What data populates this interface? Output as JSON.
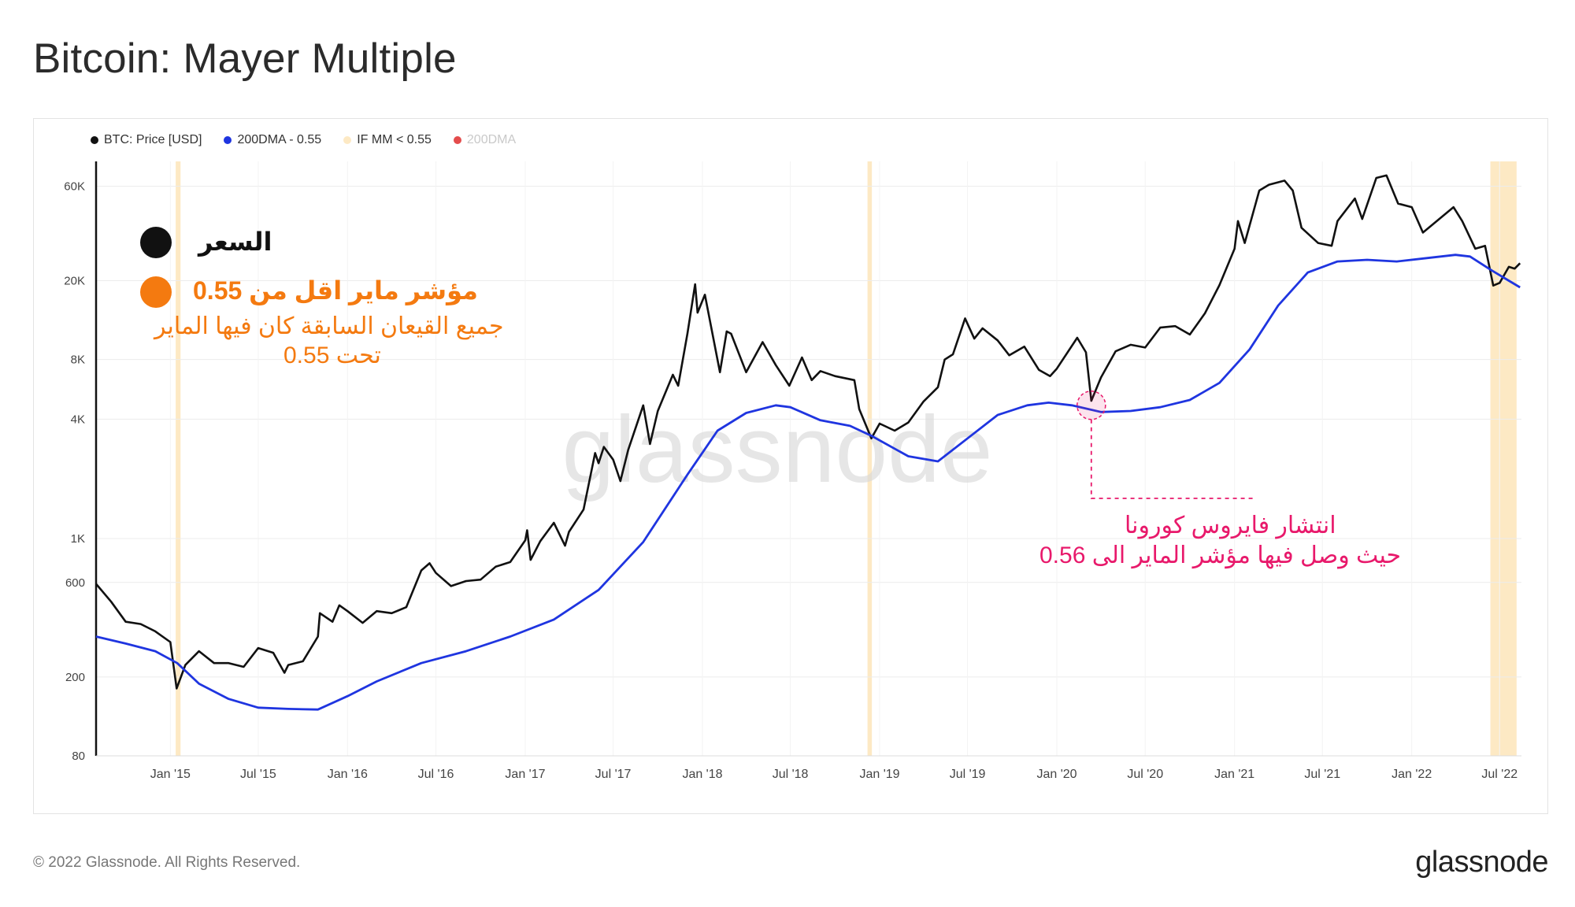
{
  "title": "Bitcoin: Mayer Multiple",
  "legend": [
    {
      "label": "BTC: Price [USD]",
      "color": "#111111",
      "muted": false
    },
    {
      "label": "200DMA - 0.55",
      "color": "#1f35e0",
      "muted": false
    },
    {
      "label": "IF MM < 0.55",
      "color": "#fde9c4",
      "muted": false
    },
    {
      "label": "200DMA",
      "color": "#e44c4c",
      "muted": true
    }
  ],
  "annotations": {
    "price_label": "السعر",
    "mm_label": "مؤشر ماير اقل من 0.55",
    "mm_note_line1": "جميع القيعان السابقة كان فيها الماير",
    "mm_note_line2": "تحت 0.55",
    "covid_line1": "انتشار فايروس كورونا",
    "covid_line2": "حيث وصل فيها مؤشر الماير الى 0.56"
  },
  "colors": {
    "price": "#111111",
    "dma": "#1f35e0",
    "band": "#fde9c4",
    "covid": "#e8196b",
    "orange": "#f47a10"
  },
  "watermark": "glassnode",
  "footer": {
    "copyright": "© 2022 Glassnode. All Rights Reserved.",
    "logo": "glassnode"
  },
  "chart_data": {
    "type": "line",
    "title": "Bitcoin: Mayer Multiple",
    "y_scale": "log",
    "ylim": [
      80,
      80000
    ],
    "y_ticks": [
      "60K",
      "20K",
      "8K",
      "4K",
      "1K",
      "600",
      "200",
      "80"
    ],
    "y_tick_values": [
      60000,
      20000,
      8000,
      4000,
      1000,
      600,
      200,
      80
    ],
    "x_ticks": [
      "Jan '15",
      "Jul '15",
      "Jan '16",
      "Jul '16",
      "Jan '17",
      "Jul '17",
      "Jan '18",
      "Jul '18",
      "Jan '19",
      "Jul '19",
      "Jan '20",
      "Jul '20",
      "Jan '21",
      "Jul '21",
      "Jan '22",
      "Jul '22"
    ],
    "x_tick_dates": [
      "2015-01-01",
      "2015-07-01",
      "2016-01-01",
      "2016-07-01",
      "2017-01-01",
      "2017-07-01",
      "2018-01-01",
      "2018-07-01",
      "2019-01-01",
      "2019-07-01",
      "2020-01-01",
      "2020-07-01",
      "2021-01-01",
      "2021-07-01",
      "2022-01-01",
      "2022-07-01"
    ],
    "xlim": [
      "2014-08-01",
      "2022-08-15"
    ],
    "grid": true,
    "series": [
      {
        "name": "BTC: Price [USD]",
        "color": "#111111",
        "points": [
          [
            "2014-08-01",
            590
          ],
          [
            "2014-09-01",
            480
          ],
          [
            "2014-10-01",
            380
          ],
          [
            "2014-11-01",
            370
          ],
          [
            "2014-12-01",
            340
          ],
          [
            "2015-01-01",
            300
          ],
          [
            "2015-01-14",
            175
          ],
          [
            "2015-02-01",
            230
          ],
          [
            "2015-03-01",
            270
          ],
          [
            "2015-04-01",
            235
          ],
          [
            "2015-05-01",
            235
          ],
          [
            "2015-06-01",
            225
          ],
          [
            "2015-07-01",
            280
          ],
          [
            "2015-08-01",
            265
          ],
          [
            "2015-08-24",
            210
          ],
          [
            "2015-09-01",
            230
          ],
          [
            "2015-10-01",
            240
          ],
          [
            "2015-11-01",
            320
          ],
          [
            "2015-11-05",
            420
          ],
          [
            "2015-12-01",
            380
          ],
          [
            "2015-12-15",
            460
          ],
          [
            "2016-01-01",
            430
          ],
          [
            "2016-02-01",
            375
          ],
          [
            "2016-03-01",
            430
          ],
          [
            "2016-04-01",
            420
          ],
          [
            "2016-05-01",
            450
          ],
          [
            "2016-06-01",
            690
          ],
          [
            "2016-06-18",
            750
          ],
          [
            "2016-07-01",
            670
          ],
          [
            "2016-08-01",
            575
          ],
          [
            "2016-09-01",
            610
          ],
          [
            "2016-10-01",
            620
          ],
          [
            "2016-11-01",
            720
          ],
          [
            "2016-12-01",
            760
          ],
          [
            "2017-01-01",
            980
          ],
          [
            "2017-01-05",
            1100
          ],
          [
            "2017-01-12",
            780
          ],
          [
            "2017-02-01",
            970
          ],
          [
            "2017-03-01",
            1200
          ],
          [
            "2017-03-24",
            920
          ],
          [
            "2017-04-01",
            1080
          ],
          [
            "2017-05-01",
            1400
          ],
          [
            "2017-05-25",
            2700
          ],
          [
            "2017-06-01",
            2400
          ],
          [
            "2017-06-12",
            2900
          ],
          [
            "2017-07-01",
            2500
          ],
          [
            "2017-07-16",
            1950
          ],
          [
            "2017-08-01",
            2800
          ],
          [
            "2017-09-01",
            4700
          ],
          [
            "2017-09-15",
            3000
          ],
          [
            "2017-10-01",
            4400
          ],
          [
            "2017-11-01",
            6700
          ],
          [
            "2017-11-12",
            5900
          ],
          [
            "2017-12-01",
            10800
          ],
          [
            "2017-12-17",
            19200
          ],
          [
            "2017-12-22",
            13800
          ],
          [
            "2018-01-06",
            17000
          ],
          [
            "2018-02-06",
            6900
          ],
          [
            "2018-02-20",
            11100
          ],
          [
            "2018-03-01",
            10800
          ],
          [
            "2018-04-01",
            6900
          ],
          [
            "2018-05-05",
            9800
          ],
          [
            "2018-06-01",
            7500
          ],
          [
            "2018-06-29",
            5900
          ],
          [
            "2018-07-25",
            8200
          ],
          [
            "2018-08-14",
            6300
          ],
          [
            "2018-09-01",
            7000
          ],
          [
            "2018-10-01",
            6600
          ],
          [
            "2018-11-10",
            6300
          ],
          [
            "2018-11-20",
            4500
          ],
          [
            "2018-12-15",
            3200
          ],
          [
            "2019-01-01",
            3800
          ],
          [
            "2019-02-01",
            3500
          ],
          [
            "2019-03-01",
            3850
          ],
          [
            "2019-04-01",
            4900
          ],
          [
            "2019-05-01",
            5800
          ],
          [
            "2019-05-15",
            8000
          ],
          [
            "2019-06-01",
            8500
          ],
          [
            "2019-06-26",
            12900
          ],
          [
            "2019-07-15",
            10200
          ],
          [
            "2019-08-01",
            11500
          ],
          [
            "2019-09-01",
            10000
          ],
          [
            "2019-09-25",
            8400
          ],
          [
            "2019-10-26",
            9300
          ],
          [
            "2019-11-25",
            7100
          ],
          [
            "2019-12-18",
            6600
          ],
          [
            "2020-01-01",
            7200
          ],
          [
            "2020-02-12",
            10300
          ],
          [
            "2020-03-01",
            8700
          ],
          [
            "2020-03-12",
            4950
          ],
          [
            "2020-04-01",
            6500
          ],
          [
            "2020-05-01",
            8800
          ],
          [
            "2020-06-01",
            9500
          ],
          [
            "2020-07-01",
            9200
          ],
          [
            "2020-08-01",
            11600
          ],
          [
            "2020-09-01",
            11800
          ],
          [
            "2020-10-01",
            10700
          ],
          [
            "2020-11-01",
            13700
          ],
          [
            "2020-12-01",
            19000
          ],
          [
            "2021-01-01",
            29000
          ],
          [
            "2021-01-08",
            40000
          ],
          [
            "2021-01-22",
            31000
          ],
          [
            "2021-02-21",
            57000
          ],
          [
            "2021-03-13",
            61000
          ],
          [
            "2021-04-14",
            64000
          ],
          [
            "2021-05-01",
            57000
          ],
          [
            "2021-05-19",
            37000
          ],
          [
            "2021-06-22",
            31000
          ],
          [
            "2021-07-20",
            30000
          ],
          [
            "2021-08-01",
            40000
          ],
          [
            "2021-09-06",
            52000
          ],
          [
            "2021-09-21",
            41000
          ],
          [
            "2021-10-20",
            66000
          ],
          [
            "2021-11-10",
            68000
          ],
          [
            "2021-12-04",
            49000
          ],
          [
            "2022-01-01",
            47000
          ],
          [
            "2022-01-24",
            35000
          ],
          [
            "2022-03-28",
            47000
          ],
          [
            "2022-04-15",
            40000
          ],
          [
            "2022-05-12",
            29000
          ],
          [
            "2022-06-01",
            30000
          ],
          [
            "2022-06-18",
            18900
          ],
          [
            "2022-07-01",
            19500
          ],
          [
            "2022-07-20",
            23500
          ],
          [
            "2022-08-01",
            23000
          ],
          [
            "2022-08-12",
            24500
          ]
        ]
      },
      {
        "name": "200DMA - 0.55",
        "color": "#1f35e0",
        "points": [
          [
            "2014-08-01",
            320
          ],
          [
            "2014-10-01",
            295
          ],
          [
            "2014-12-01",
            270
          ],
          [
            "2015-01-15",
            235
          ],
          [
            "2015-03-01",
            185
          ],
          [
            "2015-05-01",
            155
          ],
          [
            "2015-07-01",
            140
          ],
          [
            "2015-09-01",
            138
          ],
          [
            "2015-11-01",
            137
          ],
          [
            "2016-01-01",
            160
          ],
          [
            "2016-03-01",
            190
          ],
          [
            "2016-06-01",
            235
          ],
          [
            "2016-09-01",
            270
          ],
          [
            "2016-12-01",
            320
          ],
          [
            "2017-03-01",
            390
          ],
          [
            "2017-06-01",
            550
          ],
          [
            "2017-09-01",
            960
          ],
          [
            "2017-12-01",
            2100
          ],
          [
            "2018-02-01",
            3500
          ],
          [
            "2018-04-01",
            4300
          ],
          [
            "2018-06-01",
            4700
          ],
          [
            "2018-07-01",
            4600
          ],
          [
            "2018-09-01",
            3950
          ],
          [
            "2018-11-01",
            3700
          ],
          [
            "2018-12-15",
            3300
          ],
          [
            "2019-03-01",
            2600
          ],
          [
            "2019-05-01",
            2450
          ],
          [
            "2019-07-01",
            3200
          ],
          [
            "2019-09-01",
            4200
          ],
          [
            "2019-11-01",
            4700
          ],
          [
            "2019-12-15",
            4850
          ],
          [
            "2020-02-01",
            4700
          ],
          [
            "2020-04-01",
            4350
          ],
          [
            "2020-06-01",
            4400
          ],
          [
            "2020-08-01",
            4600
          ],
          [
            "2020-10-01",
            5000
          ],
          [
            "2020-12-01",
            6100
          ],
          [
            "2021-02-01",
            9000
          ],
          [
            "2021-04-01",
            15000
          ],
          [
            "2021-06-01",
            22000
          ],
          [
            "2021-08-01",
            25000
          ],
          [
            "2021-10-01",
            25500
          ],
          [
            "2021-12-01",
            25000
          ],
          [
            "2022-02-01",
            26000
          ],
          [
            "2022-04-01",
            27000
          ],
          [
            "2022-05-01",
            26500
          ],
          [
            "2022-06-15",
            22500
          ],
          [
            "2022-08-12",
            18500
          ]
        ]
      }
    ],
    "highlight_bands": [
      [
        "2015-01-12",
        "2015-01-22"
      ],
      [
        "2018-12-07",
        "2018-12-16"
      ],
      [
        "2022-06-12",
        "2022-08-05"
      ]
    ]
  }
}
